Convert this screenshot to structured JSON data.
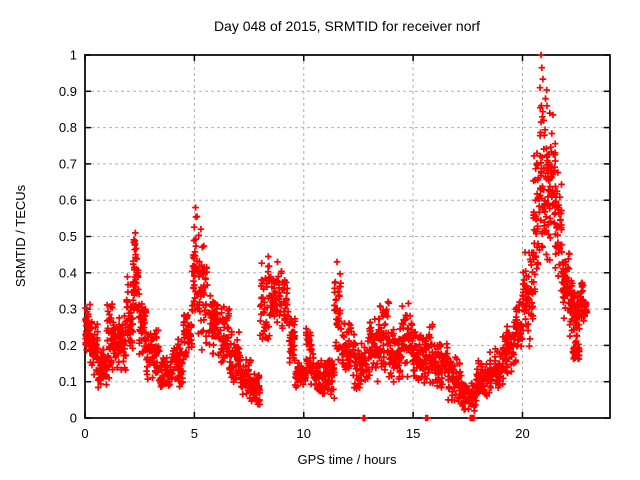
{
  "chart_data": {
    "type": "scatter",
    "title": "Day 048 of 2015, SRMTID for receiver norf",
    "xlabel": "GPS time / hours",
    "ylabel": "SRMTID / TECUs",
    "xlim": [
      0,
      24
    ],
    "ylim": [
      0,
      1
    ],
    "grid": true,
    "legend": "none",
    "marker": "plus",
    "marker_color": "#ff0000",
    "grid_color": "#b0b0b0",
    "axis_color": "#000000",
    "xticks": [
      0,
      5,
      10,
      15,
      20
    ],
    "xtick_labels": [
      "0",
      "5",
      "10",
      "15",
      "20"
    ],
    "yticks": [
      0,
      0.1,
      0.2,
      0.3,
      0.4,
      0.5,
      0.6,
      0.7,
      0.8,
      0.9,
      1
    ],
    "ytick_labels": [
      "0",
      "0.1",
      "0.2",
      "0.3",
      "0.4",
      "0.5",
      "0.6",
      "0.7",
      "0.8",
      "0.9",
      "1"
    ],
    "series_name": "SRMTID",
    "seed": 48,
    "envelope_segments": [
      {
        "t0": 0.0,
        "t1": 0.25,
        "ymin": 0.17,
        "ymax": 0.33,
        "n": 45
      },
      {
        "t0": 0.25,
        "t1": 0.6,
        "ymin": 0.1,
        "ymax": 0.28,
        "n": 50
      },
      {
        "t0": 0.6,
        "t1": 1.0,
        "ymin": 0.07,
        "ymax": 0.2,
        "n": 50
      },
      {
        "t0": 1.0,
        "t1": 1.4,
        "ymin": 0.1,
        "ymax": 0.33,
        "n": 55
      },
      {
        "t0": 1.4,
        "t1": 1.9,
        "ymin": 0.12,
        "ymax": 0.3,
        "n": 60
      },
      {
        "t0": 1.9,
        "t1": 2.2,
        "ymin": 0.18,
        "ymax": 0.4,
        "n": 45
      },
      {
        "t0": 2.2,
        "t1": 2.45,
        "ymin": 0.26,
        "ymax": 0.51,
        "n": 40
      },
      {
        "t0": 2.45,
        "t1": 2.8,
        "ymin": 0.15,
        "ymax": 0.38,
        "n": 45
      },
      {
        "t0": 2.8,
        "t1": 3.4,
        "ymin": 0.1,
        "ymax": 0.26,
        "n": 65
      },
      {
        "t0": 3.4,
        "t1": 4.0,
        "ymin": 0.07,
        "ymax": 0.18,
        "n": 60
      },
      {
        "t0": 4.0,
        "t1": 4.5,
        "ymin": 0.08,
        "ymax": 0.22,
        "n": 55
      },
      {
        "t0": 4.5,
        "t1": 4.9,
        "ymin": 0.14,
        "ymax": 0.33,
        "n": 45
      },
      {
        "t0": 4.9,
        "t1": 5.15,
        "ymin": 0.22,
        "ymax": 0.58,
        "n": 35
      },
      {
        "t0": 5.15,
        "t1": 5.6,
        "ymin": 0.18,
        "ymax": 0.52,
        "n": 50
      },
      {
        "t0": 5.6,
        "t1": 6.1,
        "ymin": 0.17,
        "ymax": 0.35,
        "n": 55
      },
      {
        "t0": 6.1,
        "t1": 6.6,
        "ymin": 0.14,
        "ymax": 0.33,
        "n": 55
      },
      {
        "t0": 6.6,
        "t1": 7.1,
        "ymin": 0.09,
        "ymax": 0.24,
        "n": 55
      },
      {
        "t0": 7.1,
        "t1": 7.6,
        "ymin": 0.05,
        "ymax": 0.17,
        "n": 55
      },
      {
        "t0": 7.6,
        "t1": 8.0,
        "ymin": 0.03,
        "ymax": 0.13,
        "n": 45
      },
      {
        "t0": 8.0,
        "t1": 8.45,
        "ymin": 0.18,
        "ymax": 0.44,
        "n": 50
      },
      {
        "t0": 8.45,
        "t1": 9.3,
        "ymin": 0.24,
        "ymax": 0.42,
        "n": 80
      },
      {
        "t0": 9.3,
        "t1": 9.6,
        "ymin": 0.13,
        "ymax": 0.28,
        "n": 35
      },
      {
        "t0": 9.6,
        "t1": 10.1,
        "ymin": 0.08,
        "ymax": 0.16,
        "n": 55
      },
      {
        "t0": 10.1,
        "t1": 10.45,
        "ymin": 0.09,
        "ymax": 0.28,
        "n": 40
      },
      {
        "t0": 10.45,
        "t1": 11.1,
        "ymin": 0.06,
        "ymax": 0.16,
        "n": 65
      },
      {
        "t0": 11.1,
        "t1": 11.4,
        "ymin": 0.05,
        "ymax": 0.18,
        "n": 35
      },
      {
        "t0": 11.4,
        "t1": 11.75,
        "ymin": 0.14,
        "ymax": 0.43,
        "n": 40
      },
      {
        "t0": 11.75,
        "t1": 12.3,
        "ymin": 0.1,
        "ymax": 0.28,
        "n": 55
      },
      {
        "t0": 12.3,
        "t1": 12.9,
        "ymin": 0.06,
        "ymax": 0.22,
        "n": 60
      },
      {
        "t0": 12.9,
        "t1": 13.4,
        "ymin": 0.09,
        "ymax": 0.3,
        "n": 50
      },
      {
        "t0": 13.4,
        "t1": 13.9,
        "ymin": 0.11,
        "ymax": 0.33,
        "n": 55
      },
      {
        "t0": 13.9,
        "t1": 14.4,
        "ymin": 0.09,
        "ymax": 0.26,
        "n": 55
      },
      {
        "t0": 14.4,
        "t1": 14.95,
        "ymin": 0.11,
        "ymax": 0.33,
        "n": 60
      },
      {
        "t0": 14.95,
        "t1": 15.5,
        "ymin": 0.09,
        "ymax": 0.28,
        "n": 60
      },
      {
        "t0": 15.5,
        "t1": 16.0,
        "ymin": 0.07,
        "ymax": 0.26,
        "n": 55
      },
      {
        "t0": 16.0,
        "t1": 16.6,
        "ymin": 0.07,
        "ymax": 0.22,
        "n": 60
      },
      {
        "t0": 16.6,
        "t1": 17.2,
        "ymin": 0.04,
        "ymax": 0.17,
        "n": 60
      },
      {
        "t0": 17.2,
        "t1": 17.9,
        "ymin": 0.01,
        "ymax": 0.11,
        "n": 65
      },
      {
        "t0": 17.9,
        "t1": 18.5,
        "ymin": 0.05,
        "ymax": 0.16,
        "n": 60
      },
      {
        "t0": 18.5,
        "t1": 19.1,
        "ymin": 0.07,
        "ymax": 0.2,
        "n": 60
      },
      {
        "t0": 19.1,
        "t1": 19.6,
        "ymin": 0.1,
        "ymax": 0.28,
        "n": 55
      },
      {
        "t0": 19.6,
        "t1": 20.0,
        "ymin": 0.14,
        "ymax": 0.35,
        "n": 50
      },
      {
        "t0": 20.0,
        "t1": 20.5,
        "ymin": 0.18,
        "ymax": 0.5,
        "n": 60
      },
      {
        "t0": 20.5,
        "t1": 20.8,
        "ymin": 0.28,
        "ymax": 0.75,
        "n": 45
      },
      {
        "t0": 20.8,
        "t1": 21.15,
        "ymin": 0.38,
        "ymax": 0.97,
        "n": 55
      },
      {
        "t0": 21.15,
        "t1": 21.5,
        "ymin": 0.42,
        "ymax": 0.88,
        "n": 55
      },
      {
        "t0": 21.5,
        "t1": 21.8,
        "ymin": 0.33,
        "ymax": 0.7,
        "n": 45
      },
      {
        "t0": 21.8,
        "t1": 22.15,
        "ymin": 0.26,
        "ymax": 0.5,
        "n": 45
      },
      {
        "t0": 22.15,
        "t1": 22.5,
        "ymin": 0.2,
        "ymax": 0.4,
        "n": 45
      },
      {
        "t0": 22.3,
        "t1": 22.6,
        "ymin": 0.15,
        "ymax": 0.22,
        "n": 40
      },
      {
        "t0": 22.5,
        "t1": 22.8,
        "ymin": 0.24,
        "ymax": 0.38,
        "n": 40
      },
      {
        "t0": 22.8,
        "t1": 22.95,
        "ymin": 0.27,
        "ymax": 0.33,
        "n": 15
      }
    ],
    "notable_points": [
      [
        20.85,
        1.0
      ],
      [
        20.88,
        0.965
      ],
      [
        20.8,
        0.91
      ],
      [
        21.05,
        0.88
      ],
      [
        21.12,
        0.86
      ],
      [
        21.25,
        0.84
      ],
      [
        5.05,
        0.58
      ],
      [
        5.12,
        0.555
      ],
      [
        5.3,
        0.52
      ],
      [
        2.3,
        0.51
      ],
      [
        2.28,
        0.48
      ],
      [
        8.38,
        0.445
      ],
      [
        8.8,
        0.43
      ],
      [
        11.52,
        0.43
      ]
    ],
    "zero_points": [
      [
        12.72,
        0
      ],
      [
        12.78,
        0
      ],
      [
        15.58,
        0
      ],
      [
        15.66,
        0
      ],
      [
        17.62,
        0
      ],
      [
        17.66,
        0
      ],
      [
        17.7,
        0
      ],
      [
        17.74,
        0
      ],
      [
        17.78,
        0
      ]
    ]
  }
}
